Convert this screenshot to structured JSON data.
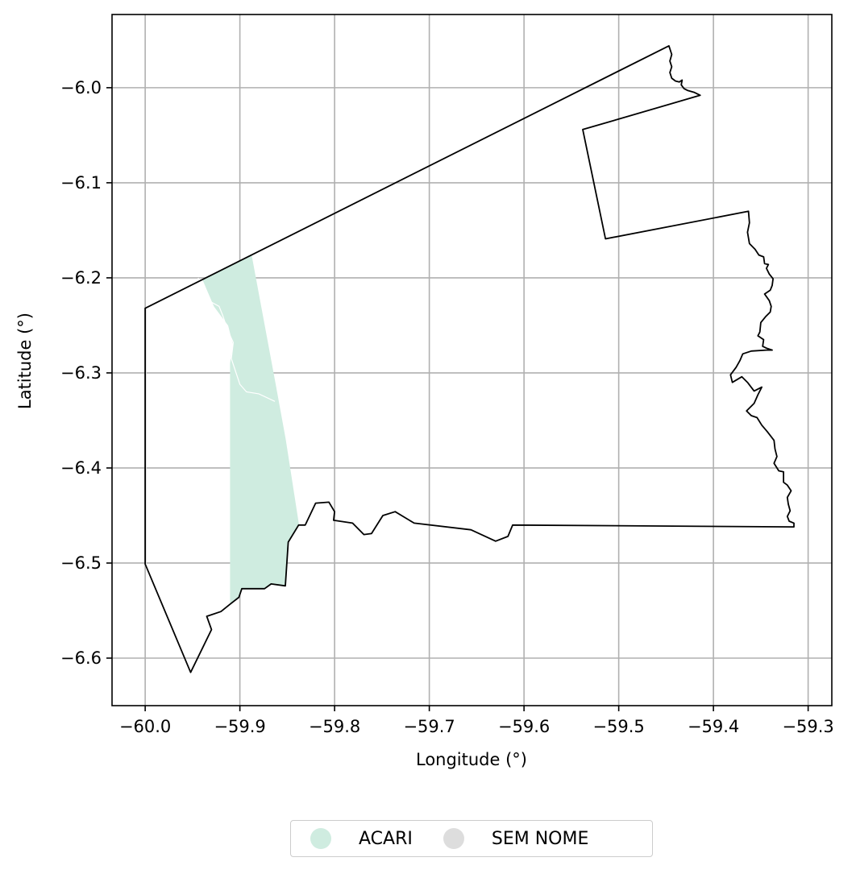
{
  "chart_data": {
    "type": "map",
    "xlabel": "Longitude (°)",
    "ylabel": "Latitude (°)",
    "xlim": [
      -60.035,
      -59.275
    ],
    "ylim": [
      -6.65,
      -5.923
    ],
    "grid": true,
    "x_ticks": [
      -60.0,
      -59.9,
      -59.8,
      -59.7,
      -59.6,
      -59.5,
      -59.4,
      -59.3
    ],
    "x_tick_labels": [
      "−60.0",
      "−59.9",
      "−59.8",
      "−59.7",
      "−59.6",
      "−59.5",
      "−59.4",
      "−59.3"
    ],
    "y_ticks": [
      -6.0,
      -6.1,
      -6.2,
      -6.3,
      -6.4,
      -6.5,
      -6.6
    ],
    "y_tick_labels": [
      "−6.0",
      "−6.1",
      "−6.2",
      "−6.3",
      "−6.4",
      "−6.5",
      "−6.6"
    ],
    "legend_position": "bottom-center",
    "legend": [
      {
        "label": "ACARI",
        "color": "#cfece0"
      },
      {
        "label": "SEM NOME",
        "color": "#dddddd"
      }
    ],
    "regions": [
      {
        "name": "ACARI",
        "fill": "#cfece0",
        "coords": [
          [
            -59.888,
            -6.176
          ],
          [
            -59.863,
            -6.31
          ],
          [
            -59.852,
            -6.37
          ],
          [
            -59.838,
            -6.46
          ],
          [
            -59.849,
            -6.478
          ],
          [
            -59.852,
            -6.524
          ],
          [
            -59.867,
            -6.522
          ],
          [
            -59.874,
            -6.527
          ],
          [
            -59.89,
            -6.527
          ],
          [
            -59.898,
            -6.527
          ],
          [
            -59.901,
            -6.536
          ],
          [
            -59.91,
            -6.543
          ],
          [
            -59.91,
            -6.29
          ],
          [
            -59.907,
            -6.27
          ],
          [
            -59.912,
            -6.25
          ],
          [
            -59.927,
            -6.23
          ],
          [
            -59.939,
            -6.202
          ]
        ]
      },
      {
        "name": "SEM NOME",
        "fill": "#dddddd",
        "coords": [
          [
            -60.0,
            -6.232
          ],
          [
            -59.999,
            -6.232
          ],
          [
            -59.999,
            -6.5
          ],
          [
            -60.0,
            -6.5
          ]
        ]
      }
    ],
    "rivers": [
      {
        "name": "",
        "coords": [
          [
            -59.944,
            -6.2
          ],
          [
            -59.94,
            -6.214
          ],
          [
            -59.933,
            -6.224
          ],
          [
            -59.922,
            -6.23
          ],
          [
            -59.918,
            -6.24
          ],
          [
            -59.913,
            -6.255
          ],
          [
            -59.907,
            -6.268
          ],
          [
            -59.909,
            -6.285
          ],
          [
            -59.904,
            -6.3
          ],
          [
            -59.9,
            -6.312
          ],
          [
            -59.893,
            -6.32
          ],
          [
            -59.88,
            -6.322
          ],
          [
            -59.863,
            -6.33
          ]
        ]
      }
    ],
    "boundary": [
      [
        -60.0,
        -6.232
      ],
      [
        -59.447,
        -5.956
      ],
      [
        -59.444,
        -5.965
      ],
      [
        -59.446,
        -5.972
      ],
      [
        -59.444,
        -5.978
      ],
      [
        -59.446,
        -5.984
      ],
      [
        -59.444,
        -5.99
      ],
      [
        -59.44,
        -5.993
      ],
      [
        -59.436,
        -5.994
      ],
      [
        -59.433,
        -5.992
      ],
      [
        -59.434,
        -5.997
      ],
      [
        -59.431,
        -6.001
      ],
      [
        -59.427,
        -6.003
      ],
      [
        -59.42,
        -6.005
      ],
      [
        -59.414,
        -6.008
      ],
      [
        -59.538,
        -6.044
      ],
      [
        -59.514,
        -6.159
      ],
      [
        -59.363,
        -6.13
      ],
      [
        -59.362,
        -6.142
      ],
      [
        -59.364,
        -6.152
      ],
      [
        -59.362,
        -6.164
      ],
      [
        -59.356,
        -6.17
      ],
      [
        -59.352,
        -6.176
      ],
      [
        -59.347,
        -6.178
      ],
      [
        -59.346,
        -6.185
      ],
      [
        -59.342,
        -6.186
      ],
      [
        -59.344,
        -6.19
      ],
      [
        -59.341,
        -6.196
      ],
      [
        -59.337,
        -6.201
      ],
      [
        -59.338,
        -6.208
      ],
      [
        -59.34,
        -6.213
      ],
      [
        -59.346,
        -6.217
      ],
      [
        -59.341,
        -6.224
      ],
      [
        -59.339,
        -6.23
      ],
      [
        -59.34,
        -6.236
      ],
      [
        -59.345,
        -6.241
      ],
      [
        -59.35,
        -6.247
      ],
      [
        -59.351,
        -6.257
      ],
      [
        -59.353,
        -6.261
      ],
      [
        -59.347,
        -6.265
      ],
      [
        -59.348,
        -6.272
      ],
      [
        -59.344,
        -6.274
      ],
      [
        -59.338,
        -6.276
      ],
      [
        -59.344,
        -6.276
      ],
      [
        -59.36,
        -6.277
      ],
      [
        -59.369,
        -6.28
      ],
      [
        -59.372,
        -6.287
      ],
      [
        -59.376,
        -6.294
      ],
      [
        -59.382,
        -6.302
      ],
      [
        -59.38,
        -6.31
      ],
      [
        -59.37,
        -6.304
      ],
      [
        -59.364,
        -6.31
      ],
      [
        -59.357,
        -6.319
      ],
      [
        -59.349,
        -6.315
      ],
      [
        -59.353,
        -6.323
      ],
      [
        -59.357,
        -6.332
      ],
      [
        -59.365,
        -6.34
      ],
      [
        -59.36,
        -6.345
      ],
      [
        -59.354,
        -6.347
      ],
      [
        -59.349,
        -6.355
      ],
      [
        -59.343,
        -6.362
      ],
      [
        -59.336,
        -6.371
      ],
      [
        -59.335,
        -6.38
      ],
      [
        -59.333,
        -6.388
      ],
      [
        -59.336,
        -6.395
      ],
      [
        -59.331,
        -6.403
      ],
      [
        -59.326,
        -6.404
      ],
      [
        -59.326,
        -6.415
      ],
      [
        -59.322,
        -6.418
      ],
      [
        -59.318,
        -6.424
      ],
      [
        -59.322,
        -6.431
      ],
      [
        -59.321,
        -6.438
      ],
      [
        -59.319,
        -6.445
      ],
      [
        -59.322,
        -6.451
      ],
      [
        -59.32,
        -6.456
      ],
      [
        -59.315,
        -6.458
      ],
      [
        -59.315,
        -6.462
      ],
      [
        -59.612,
        -6.46
      ],
      [
        -59.617,
        -6.472
      ],
      [
        -59.63,
        -6.477
      ],
      [
        -59.656,
        -6.465
      ],
      [
        -59.716,
        -6.458
      ],
      [
        -59.736,
        -6.446
      ],
      [
        -59.749,
        -6.45
      ],
      [
        -59.761,
        -6.469
      ],
      [
        -59.769,
        -6.47
      ],
      [
        -59.781,
        -6.458
      ],
      [
        -59.801,
        -6.455
      ],
      [
        -59.8,
        -6.446
      ],
      [
        -59.806,
        -6.436
      ],
      [
        -59.82,
        -6.437
      ],
      [
        -59.831,
        -6.46
      ],
      [
        -59.838,
        -6.46
      ],
      [
        -59.849,
        -6.478
      ],
      [
        -59.852,
        -6.524
      ],
      [
        -59.867,
        -6.522
      ],
      [
        -59.874,
        -6.527
      ],
      [
        -59.89,
        -6.527
      ],
      [
        -59.898,
        -6.527
      ],
      [
        -59.901,
        -6.536
      ],
      [
        -59.91,
        -6.543
      ],
      [
        -59.92,
        -6.551
      ],
      [
        -59.935,
        -6.556
      ],
      [
        -59.93,
        -6.57
      ],
      [
        -59.952,
        -6.615
      ],
      [
        -60.0,
        -6.501
      ]
    ]
  }
}
